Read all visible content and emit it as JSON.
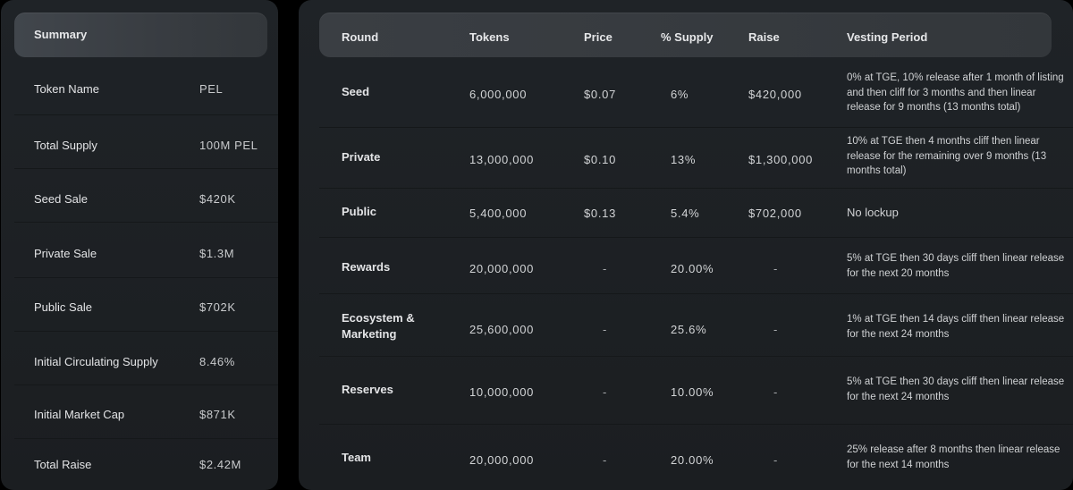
{
  "summary": {
    "title": "Summary",
    "rows": [
      {
        "label": "Token Name",
        "value": "PEL"
      },
      {
        "label": "Total Supply",
        "value": "100M PEL"
      },
      {
        "label": "Seed Sale",
        "value": "$420K"
      },
      {
        "label": "Private Sale",
        "value": "$1.3M"
      },
      {
        "label": "Public Sale",
        "value": "$702K"
      },
      {
        "label": "Initial Circulating Supply",
        "value": "8.46%"
      },
      {
        "label": "Initial Market Cap",
        "value": "$871K"
      },
      {
        "label": "Total Raise",
        "value": "$2.42M"
      }
    ]
  },
  "rounds": {
    "headers": {
      "round": "Round",
      "tokens": "Tokens",
      "price": "Price",
      "supply": "% Supply",
      "raise": "Raise",
      "vesting": "Vesting Period"
    },
    "rows": [
      {
        "round": "Seed",
        "tokens": "6,000,000",
        "price": "$0.07",
        "supply": "6%",
        "raise": "$420,000",
        "vesting": "0% at TGE, 10% release after 1 month of listing and then cliff for 3 months and then linear release for 9 months (13 months total)"
      },
      {
        "round": "Private",
        "tokens": "13,000,000",
        "price": "$0.10",
        "supply": "13%",
        "raise": "$1,300,000",
        "vesting": "10% at TGE then 4 months cliff then linear release for the remaining over 9 months (13 months total)"
      },
      {
        "round": "Public",
        "tokens": "5,400,000",
        "price": "$0.13",
        "supply": "5.4%",
        "raise": "$702,000",
        "vesting": "No lockup"
      },
      {
        "round": "Rewards",
        "tokens": "20,000,000",
        "price": "-",
        "supply": "20.00%",
        "raise": "-",
        "vesting": "5% at TGE then 30 days cliff then linear release for the next 20 months"
      },
      {
        "round": "Ecosystem & Marketing",
        "tokens": "25,600,000",
        "price": "-",
        "supply": "25.6%",
        "raise": "-",
        "vesting": "1% at TGE then 14 days cliff then linear release for the next 24 months"
      },
      {
        "round": "Reserves",
        "tokens": "10,000,000",
        "price": "-",
        "supply": "10.00%",
        "raise": "-",
        "vesting": "5% at TGE then 30 days cliff then linear release for the next 24 months"
      },
      {
        "round": "Team",
        "tokens": "20,000,000",
        "price": "-",
        "supply": "20.00%",
        "raise": "-",
        "vesting": "25% release after 8 months then linear release for the next 14 months"
      }
    ]
  }
}
